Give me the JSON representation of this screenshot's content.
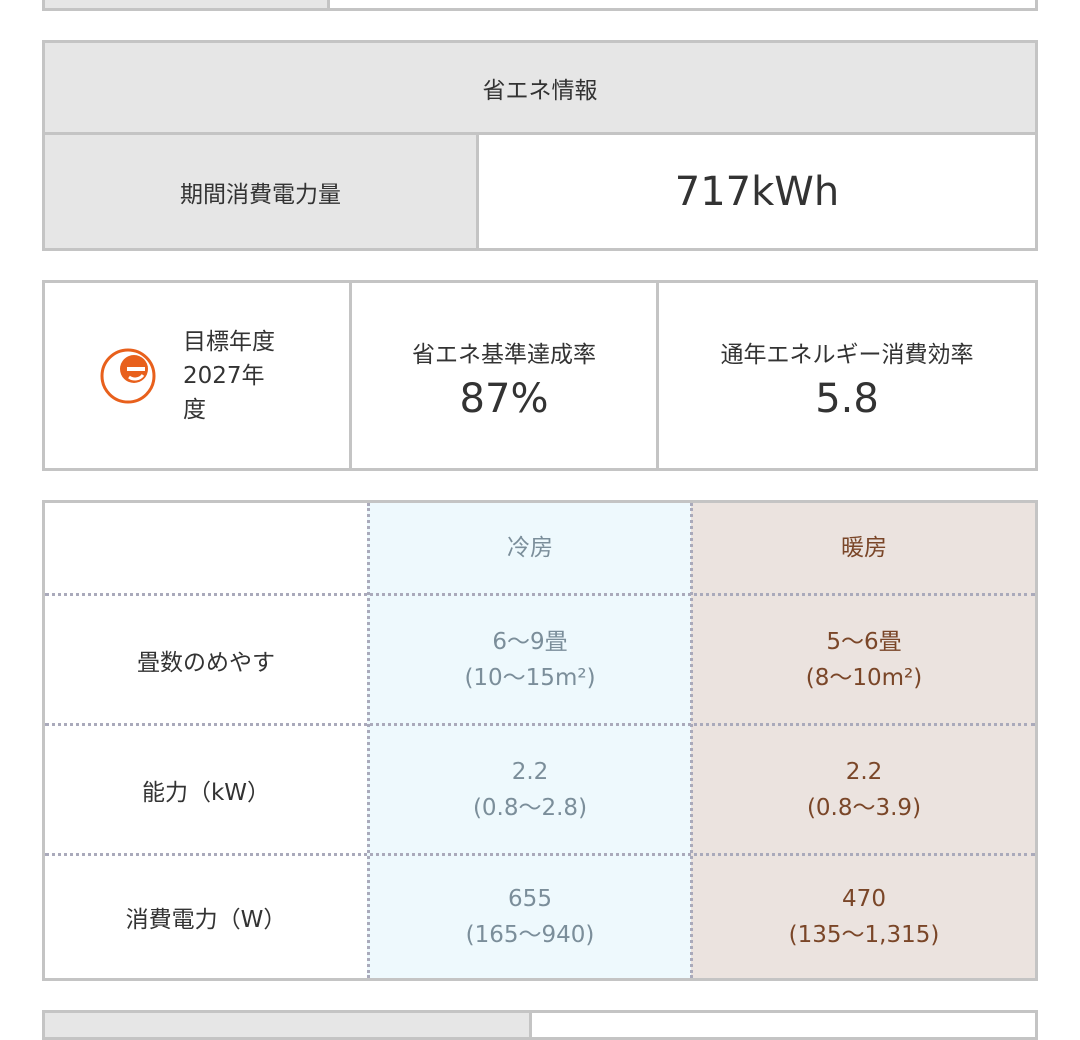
{
  "energy_info": {
    "title": "省エネ情報",
    "period_label": "期間消費電力量",
    "period_value": "717kWh"
  },
  "standards": {
    "target_year": "目標年度2027年度",
    "achievement_label": "省エネ基準達成率",
    "achievement_value": "87%",
    "apf_label": "通年エネルギー消費効率",
    "apf_value": "5.8",
    "icon": "e-mark-icon",
    "icon_color": "#e8601c"
  },
  "spec_table": {
    "headers": [
      "",
      "冷房",
      "暖房"
    ],
    "rows": [
      {
        "label": "畳数のめやす",
        "cool": [
          "6〜9畳",
          "(10〜15m²)"
        ],
        "heat": [
          "5〜6畳",
          "(8〜10m²)"
        ]
      },
      {
        "label": "能力（kW）",
        "cool": [
          "2.2",
          "(0.8〜2.8)"
        ],
        "heat": [
          "2.2",
          "(0.8〜3.9)"
        ]
      },
      {
        "label": "消費電力（W）",
        "cool": [
          "655",
          "(165〜940)"
        ],
        "heat": [
          "470",
          "(135〜1,315)"
        ]
      }
    ],
    "colors": {
      "cool_bg": "#eef9fd",
      "heat_bg": "#ebe3df"
    }
  }
}
